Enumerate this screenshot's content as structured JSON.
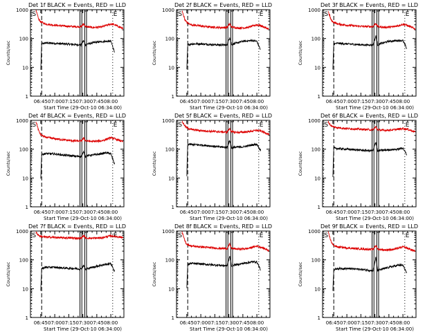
{
  "colors": {
    "events": "#000000",
    "lld": "#dd0000",
    "axes": "#000000",
    "background": "#ffffff"
  },
  "common": {
    "xlabel": "Start Time (29-Oct-10 06:34:00)",
    "ylabel": "Counts/sec",
    "x_tick_labels": [
      "06:45",
      "07:00",
      "07:15",
      "07:30",
      "07:45",
      "08:00"
    ],
    "y_tick_labels": [
      "1",
      "10",
      "100",
      "1000"
    ],
    "marker_s": "S",
    "marker_e": "E"
  },
  "chart_data": [
    {
      "type": "line",
      "title": "Det 1f BLACK = Events, RED = LLD",
      "yscale": "log",
      "ylim": [
        1,
        1000
      ],
      "xlim": [
        "06:34",
        "08:14"
      ],
      "x_ticks": [
        "06:45",
        "07:00",
        "07:15",
        "07:30",
        "07:45",
        "08:00"
      ],
      "series": [
        {
          "name": "Events",
          "color": "#000000",
          "x": [
            "06:45",
            "06:46",
            "06:50",
            "07:00",
            "07:10",
            "07:20",
            "07:28",
            "07:31",
            "07:33",
            "07:35",
            "07:45",
            "07:55",
            "08:00",
            "08:04"
          ],
          "y": [
            8,
            65,
            70,
            68,
            65,
            62,
            60,
            85,
            60,
            65,
            75,
            80,
            80,
            35
          ]
        },
        {
          "name": "LLD",
          "color": "#dd0000",
          "x": [
            "06:40",
            "06:43",
            "06:45",
            "06:50",
            "07:00",
            "07:10",
            "07:20",
            "07:28",
            "07:31",
            "07:33",
            "07:40",
            "07:50",
            "08:00",
            "08:04",
            "08:13"
          ],
          "y": [
            900,
            450,
            380,
            320,
            290,
            270,
            260,
            255,
            320,
            260,
            240,
            250,
            320,
            300,
            220
          ]
        }
      ]
    },
    {
      "type": "line",
      "title": "Det 2f BLACK = Events, RED = LLD",
      "yscale": "log",
      "ylim": [
        1,
        1000
      ],
      "xlim": [
        "06:34",
        "08:14"
      ],
      "x_ticks": [
        "06:45",
        "07:00",
        "07:15",
        "07:30",
        "07:45",
        "08:00"
      ],
      "series": [
        {
          "name": "Events",
          "color": "#000000",
          "x": [
            "06:45",
            "06:46",
            "06:50",
            "07:00",
            "07:10",
            "07:20",
            "07:28",
            "07:31",
            "07:33",
            "07:35",
            "07:45",
            "07:55",
            "08:00",
            "08:04"
          ],
          "y": [
            8,
            60,
            65,
            65,
            62,
            60,
            60,
            110,
            60,
            65,
            80,
            85,
            80,
            40
          ]
        },
        {
          "name": "LLD",
          "color": "#dd0000",
          "x": [
            "06:40",
            "06:43",
            "06:45",
            "06:50",
            "07:00",
            "07:10",
            "07:20",
            "07:28",
            "07:31",
            "07:33",
            "07:40",
            "07:50",
            "08:00",
            "08:04",
            "08:13"
          ],
          "y": [
            900,
            450,
            360,
            300,
            270,
            250,
            240,
            240,
            320,
            250,
            230,
            240,
            300,
            280,
            210
          ]
        }
      ]
    },
    {
      "type": "line",
      "title": "Det 3f BLACK = Events, RED = LLD",
      "yscale": "log",
      "ylim": [
        1,
        1000
      ],
      "xlim": [
        "06:34",
        "08:14"
      ],
      "x_ticks": [
        "06:45",
        "07:00",
        "07:15",
        "07:30",
        "07:45",
        "08:00"
      ],
      "series": [
        {
          "name": "Events",
          "color": "#000000",
          "x": [
            "06:45",
            "06:46",
            "06:50",
            "07:00",
            "07:10",
            "07:20",
            "07:28",
            "07:31",
            "07:33",
            "07:35",
            "07:45",
            "07:55",
            "08:00",
            "08:04"
          ],
          "y": [
            8,
            65,
            68,
            65,
            62,
            60,
            60,
            120,
            60,
            65,
            80,
            85,
            85,
            45
          ]
        },
        {
          "name": "LLD",
          "color": "#dd0000",
          "x": [
            "06:40",
            "06:43",
            "06:45",
            "06:50",
            "07:00",
            "07:10",
            "07:20",
            "07:28",
            "07:31",
            "07:33",
            "07:40",
            "07:50",
            "08:00",
            "08:04",
            "08:13"
          ],
          "y": [
            900,
            450,
            380,
            320,
            290,
            270,
            260,
            260,
            340,
            260,
            245,
            255,
            310,
            290,
            215
          ]
        }
      ]
    },
    {
      "type": "line",
      "title": "Det 4f BLACK = Events, RED = LLD",
      "yscale": "log",
      "ylim": [
        1,
        1000
      ],
      "xlim": [
        "06:34",
        "08:14"
      ],
      "x_ticks": [
        "06:45",
        "07:00",
        "07:15",
        "07:30",
        "07:45",
        "08:00"
      ],
      "series": [
        {
          "name": "Events",
          "color": "#000000",
          "x": [
            "06:45",
            "06:46",
            "06:50",
            "07:00",
            "07:10",
            "07:20",
            "07:28",
            "07:31",
            "07:33",
            "07:35",
            "07:45",
            "07:55",
            "08:00",
            "08:04"
          ],
          "y": [
            10,
            65,
            70,
            68,
            62,
            58,
            55,
            80,
            55,
            60,
            65,
            75,
            70,
            30
          ]
        },
        {
          "name": "LLD",
          "color": "#dd0000",
          "x": [
            "06:40",
            "06:43",
            "06:45",
            "06:50",
            "07:00",
            "07:10",
            "07:20",
            "07:28",
            "07:31",
            "07:33",
            "07:40",
            "07:50",
            "08:00",
            "08:04",
            "08:13"
          ],
          "y": [
            900,
            420,
            320,
            260,
            230,
            210,
            195,
            190,
            240,
            195,
            185,
            195,
            250,
            230,
            180
          ]
        }
      ]
    },
    {
      "type": "line",
      "title": "Det 5f BLACK = Events, RED = LLD",
      "yscale": "log",
      "ylim": [
        1,
        1000
      ],
      "xlim": [
        "06:34",
        "08:14"
      ],
      "x_ticks": [
        "06:45",
        "07:00",
        "07:15",
        "07:30",
        "07:45",
        "08:00"
      ],
      "series": [
        {
          "name": "Events",
          "color": "#000000",
          "x": [
            "06:45",
            "06:46",
            "06:50",
            "07:00",
            "07:10",
            "07:20",
            "07:28",
            "07:31",
            "07:33",
            "07:35",
            "07:45",
            "07:55",
            "08:00",
            "08:04"
          ],
          "y": [
            12,
            150,
            145,
            140,
            130,
            120,
            115,
            200,
            110,
            115,
            120,
            140,
            150,
            90
          ]
        },
        {
          "name": "LLD",
          "color": "#dd0000",
          "x": [
            "06:40",
            "06:43",
            "06:45",
            "06:50",
            "07:00",
            "07:10",
            "07:20",
            "07:28",
            "07:31",
            "07:33",
            "07:40",
            "07:50",
            "08:00",
            "08:04",
            "08:13"
          ],
          "y": [
            900,
            650,
            550,
            480,
            440,
            420,
            400,
            390,
            520,
            400,
            380,
            400,
            450,
            430,
            330
          ]
        }
      ]
    },
    {
      "type": "line",
      "title": "Det 6f BLACK = Events, RED = LLD",
      "yscale": "log",
      "ylim": [
        1,
        1000
      ],
      "xlim": [
        "06:34",
        "08:14"
      ],
      "x_ticks": [
        "06:45",
        "07:00",
        "07:15",
        "07:30",
        "07:45",
        "08:00"
      ],
      "series": [
        {
          "name": "Events",
          "color": "#000000",
          "x": [
            "06:45",
            "06:46",
            "06:50",
            "07:00",
            "07:10",
            "07:20",
            "07:28",
            "07:31",
            "07:33",
            "07:35",
            "07:45",
            "07:55",
            "08:00",
            "08:04"
          ],
          "y": [
            10,
            110,
            105,
            100,
            95,
            90,
            88,
            180,
            85,
            90,
            95,
            100,
            110,
            65
          ]
        },
        {
          "name": "LLD",
          "color": "#dd0000",
          "x": [
            "06:40",
            "06:43",
            "06:45",
            "06:50",
            "07:00",
            "07:10",
            "07:20",
            "07:28",
            "07:31",
            "07:33",
            "07:40",
            "07:50",
            "08:00",
            "08:04",
            "08:13"
          ],
          "y": [
            900,
            650,
            600,
            560,
            520,
            500,
            480,
            470,
            600,
            470,
            450,
            470,
            520,
            500,
            400
          ]
        }
      ]
    },
    {
      "type": "line",
      "title": "Det 7f BLACK = Events, RED = LLD",
      "yscale": "log",
      "ylim": [
        1,
        1000
      ],
      "xlim": [
        "06:34",
        "08:14"
      ],
      "x_ticks": [
        "06:45",
        "07:00",
        "07:15",
        "07:30",
        "07:45",
        "08:00"
      ],
      "series": [
        {
          "name": "Events",
          "color": "#000000",
          "x": [
            "06:45",
            "06:46",
            "06:50",
            "07:00",
            "07:10",
            "07:20",
            "07:28",
            "07:31",
            "07:33",
            "07:35",
            "07:45",
            "07:55",
            "08:00",
            "08:04"
          ],
          "y": [
            8,
            50,
            55,
            55,
            52,
            50,
            48,
            65,
            45,
            50,
            60,
            70,
            75,
            40
          ]
        },
        {
          "name": "LLD",
          "color": "#dd0000",
          "x": [
            "06:40",
            "06:43",
            "06:45",
            "06:50",
            "07:00",
            "07:10",
            "07:20",
            "07:28",
            "07:31",
            "07:33",
            "07:40",
            "07:50",
            "08:00",
            "08:04",
            "08:13"
          ],
          "y": [
            900,
            700,
            650,
            620,
            600,
            580,
            570,
            560,
            700,
            570,
            560,
            580,
            680,
            650,
            600
          ]
        }
      ]
    },
    {
      "type": "line",
      "title": "Det 8f BLACK = Events, RED = LLD",
      "yscale": "log",
      "ylim": [
        1,
        1000
      ],
      "xlim": [
        "06:34",
        "08:14"
      ],
      "x_ticks": [
        "06:45",
        "07:00",
        "07:15",
        "07:30",
        "07:45",
        "08:00"
      ],
      "series": [
        {
          "name": "Events",
          "color": "#000000",
          "x": [
            "06:45",
            "06:46",
            "06:50",
            "07:00",
            "07:10",
            "07:20",
            "07:28",
            "07:31",
            "07:33",
            "07:35",
            "07:45",
            "07:55",
            "08:00",
            "08:04"
          ],
          "y": [
            10,
            70,
            75,
            72,
            68,
            65,
            62,
            130,
            60,
            65,
            75,
            85,
            85,
            45
          ]
        },
        {
          "name": "LLD",
          "color": "#dd0000",
          "x": [
            "06:40",
            "06:43",
            "06:45",
            "06:50",
            "07:00",
            "07:10",
            "07:20",
            "07:28",
            "07:31",
            "07:33",
            "07:40",
            "07:50",
            "08:00",
            "08:04",
            "08:13"
          ],
          "y": [
            900,
            450,
            350,
            300,
            280,
            265,
            250,
            245,
            350,
            250,
            235,
            245,
            300,
            280,
            210
          ]
        }
      ]
    },
    {
      "type": "line",
      "title": "Det 9f BLACK = Events, RED = LLD",
      "yscale": "log",
      "ylim": [
        1,
        1000
      ],
      "xlim": [
        "06:34",
        "08:14"
      ],
      "x_ticks": [
        "06:45",
        "07:00",
        "07:15",
        "07:30",
        "07:45",
        "08:00"
      ],
      "series": [
        {
          "name": "Events",
          "color": "#000000",
          "x": [
            "06:45",
            "06:46",
            "06:50",
            "07:00",
            "07:10",
            "07:20",
            "07:28",
            "07:31",
            "07:33",
            "07:35",
            "07:45",
            "07:55",
            "08:00",
            "08:04"
          ],
          "y": [
            9,
            45,
            50,
            50,
            48,
            45,
            42,
            120,
            42,
            45,
            55,
            65,
            65,
            35
          ]
        },
        {
          "name": "LLD",
          "color": "#dd0000",
          "x": [
            "06:40",
            "06:43",
            "06:45",
            "06:50",
            "07:00",
            "07:10",
            "07:20",
            "07:28",
            "07:31",
            "07:33",
            "07:40",
            "07:50",
            "08:00",
            "08:04",
            "08:13"
          ],
          "y": [
            900,
            450,
            330,
            280,
            260,
            245,
            235,
            230,
            320,
            235,
            220,
            230,
            280,
            260,
            200
          ]
        }
      ]
    }
  ]
}
